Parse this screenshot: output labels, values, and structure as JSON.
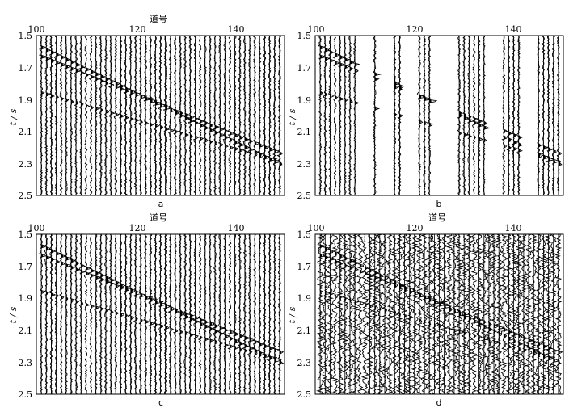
{
  "figure": {
    "panels": [
      {
        "id": "a",
        "caption": "a",
        "xlabel": "道号",
        "ylabel": "t / s",
        "gaps": []
      },
      {
        "id": "b",
        "caption": "b",
        "xlabel": "",
        "ylabel": "t / s",
        "gaps": [
          [
            109,
            111
          ],
          [
            113,
            115
          ],
          [
            118,
            120
          ],
          [
            124,
            128
          ],
          [
            135,
            137
          ],
          [
            142,
            144
          ]
        ]
      },
      {
        "id": "c",
        "caption": "c",
        "xlabel": "道号",
        "ylabel": "t / s",
        "gaps": []
      },
      {
        "id": "d",
        "caption": "d",
        "xlabel": "道号",
        "ylabel": "t / s",
        "gaps": []
      }
    ]
  },
  "chart_data": [
    {
      "type": "seismic-wiggle",
      "title": "",
      "panel": "a",
      "caption": "a",
      "xlabel": "道号",
      "ylabel": "t / s",
      "xlim": [
        100,
        150
      ],
      "ylim": [
        2.5,
        1.5
      ],
      "xticks": [
        100,
        120,
        140
      ],
      "yticks": [
        1.5,
        1.7,
        1.9,
        2.1,
        2.3,
        2.5
      ],
      "noise_level": 0.25,
      "events": [
        {
          "name": "",
          "t0": 1.56,
          "t1": 2.32,
          "amp": 1.0
        },
        {
          "name": "",
          "t0": 1.62,
          "t1": 2.25,
          "amp": 0.9
        },
        {
          "name": "",
          "t0": 1.85,
          "t1": 2.3,
          "amp": 0.7
        }
      ],
      "dead_traces": []
    },
    {
      "type": "seismic-wiggle",
      "title": "",
      "panel": "b",
      "caption": "b",
      "xlabel": "",
      "ylabel": "t / s",
      "xlim": [
        100,
        150
      ],
      "ylim": [
        2.5,
        1.5
      ],
      "xticks": [
        100,
        120,
        140
      ],
      "yticks": [
        1.5,
        1.7,
        1.9,
        2.1,
        2.3,
        2.5
      ],
      "noise_level": 0.25,
      "events": [
        {
          "name": "",
          "t0": 1.56,
          "t1": 2.32,
          "amp": 1.0
        },
        {
          "name": "",
          "t0": 1.62,
          "t1": 2.25,
          "amp": 0.9
        },
        {
          "name": "",
          "t0": 1.85,
          "t1": 2.3,
          "amp": 0.7
        }
      ],
      "dead_traces": [
        [
          109,
          111
        ],
        [
          113,
          115
        ],
        [
          118,
          120
        ],
        [
          124,
          128
        ],
        [
          135,
          137
        ],
        [
          142,
          144
        ]
      ]
    },
    {
      "type": "seismic-wiggle",
      "title": "",
      "panel": "c",
      "caption": "c",
      "xlabel": "道号",
      "ylabel": "t / s",
      "xlim": [
        100,
        150
      ],
      "ylim": [
        2.5,
        1.5
      ],
      "xticks": [
        100,
        120,
        140
      ],
      "yticks": [
        1.5,
        1.7,
        1.9,
        2.1,
        2.3,
        2.5
      ],
      "noise_level": 0.25,
      "events": [
        {
          "name": "",
          "t0": 1.56,
          "t1": 2.32,
          "amp": 1.0
        },
        {
          "name": "",
          "t0": 1.62,
          "t1": 2.25,
          "amp": 0.9
        },
        {
          "name": "",
          "t0": 1.85,
          "t1": 2.3,
          "amp": 0.7
        }
      ],
      "dead_traces": []
    },
    {
      "type": "seismic-wiggle",
      "title": "",
      "panel": "d",
      "caption": "d",
      "xlabel": "道号",
      "ylabel": "t / s",
      "xlim": [
        100,
        150
      ],
      "ylim": [
        2.5,
        1.5
      ],
      "xticks": [
        100,
        120,
        140
      ],
      "yticks": [
        1.5,
        1.7,
        1.9,
        2.1,
        2.3,
        2.5
      ],
      "noise_level": 0.6,
      "events": [
        {
          "name": "",
          "t0": 1.56,
          "t1": 2.32,
          "amp": 0.9
        },
        {
          "name": "",
          "t0": 1.62,
          "t1": 2.25,
          "amp": 0.8
        },
        {
          "name": "",
          "t0": 1.85,
          "t1": 2.3,
          "amp": 0.6
        }
      ],
      "dead_traces": []
    }
  ]
}
